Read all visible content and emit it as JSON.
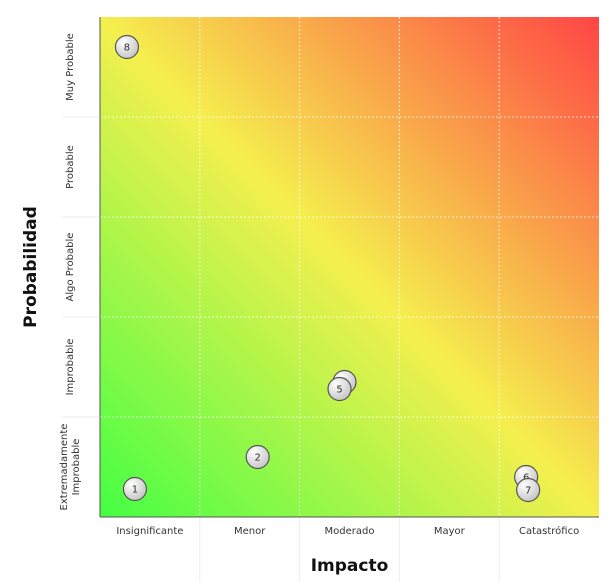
{
  "chart_data": {
    "type": "scatter",
    "title": "",
    "xlabel": "Impacto",
    "ylabel": "Probabilidad",
    "x_categories": [
      "Insignificante",
      "Menor",
      "Moderado",
      "Mayor",
      "Catastrófico"
    ],
    "y_categories": [
      "Extremadamente Improbable",
      "Improbable",
      "Algo Probable",
      "Probable",
      "Muy Probable"
    ],
    "xlim": [
      0,
      5
    ],
    "ylim": [
      0,
      5
    ],
    "grid": true,
    "background": "diagonal gradient from green (low impact, low probability) through yellow to red (high impact, high probability)",
    "colors": {
      "low": "#44ff44",
      "mid": "#f5ef4e",
      "high": "#ff4545",
      "marker_fill": "#e6e6e6",
      "marker_stroke": "#555555"
    },
    "points": [
      {
        "label": "8",
        "x": 0.27,
        "y": 4.7
      },
      {
        "label": "1",
        "x": 0.35,
        "y": 0.28
      },
      {
        "label": "2",
        "x": 1.58,
        "y": 0.6
      },
      {
        "label": "5",
        "x": 2.45,
        "y": 1.35
      },
      {
        "label": "5",
        "x": 2.4,
        "y": 1.28
      },
      {
        "label": "6",
        "x": 4.27,
        "y": 0.4
      },
      {
        "label": "7",
        "x": 4.29,
        "y": 0.27
      }
    ]
  }
}
